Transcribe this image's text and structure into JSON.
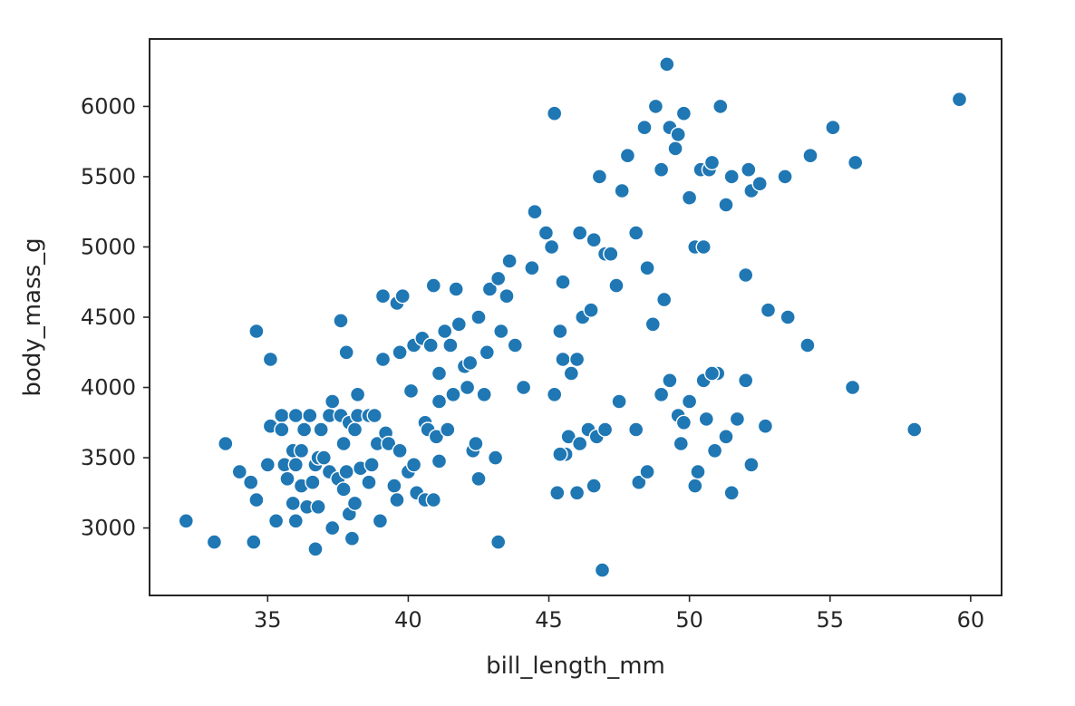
{
  "chart_data": {
    "type": "scatter",
    "title": "",
    "xlabel": "bill_length_mm",
    "ylabel": "body_mass_g",
    "xlim": [
      30.8,
      61.1
    ],
    "ylim": [
      2520,
      6480
    ],
    "xticks": [
      35,
      40,
      45,
      50,
      55,
      60
    ],
    "yticks": [
      3000,
      3500,
      4000,
      4500,
      5000,
      5500,
      6000
    ],
    "grid": false,
    "legend": "none",
    "marker_color": "#1f77b4",
    "marker_edge_color": "#ffffff",
    "points": [
      [
        32.1,
        3050
      ],
      [
        33.1,
        2900
      ],
      [
        33.5,
        3600
      ],
      [
        34.0,
        3400
      ],
      [
        34.4,
        3325
      ],
      [
        34.5,
        2900
      ],
      [
        34.6,
        3200
      ],
      [
        34.6,
        4400
      ],
      [
        35.0,
        3450
      ],
      [
        35.1,
        4200
      ],
      [
        35.1,
        3725
      ],
      [
        35.3,
        3050
      ],
      [
        35.5,
        3800
      ],
      [
        35.5,
        3700
      ],
      [
        35.6,
        3450
      ],
      [
        35.7,
        3350
      ],
      [
        35.9,
        3550
      ],
      [
        35.9,
        3175
      ],
      [
        36.0,
        3800
      ],
      [
        36.0,
        3450
      ],
      [
        36.0,
        3050
      ],
      [
        36.2,
        3300
      ],
      [
        36.2,
        3550
      ],
      [
        36.3,
        3700
      ],
      [
        36.4,
        3150
      ],
      [
        36.5,
        3800
      ],
      [
        36.6,
        3325
      ],
      [
        36.7,
        2850
      ],
      [
        36.7,
        3450
      ],
      [
        36.8,
        3150
      ],
      [
        36.8,
        3500
      ],
      [
        36.9,
        3700
      ],
      [
        37.0,
        3500
      ],
      [
        37.2,
        3800
      ],
      [
        37.2,
        3400
      ],
      [
        37.3,
        3900
      ],
      [
        37.3,
        3000
      ],
      [
        37.5,
        3350
      ],
      [
        37.6,
        3800
      ],
      [
        37.6,
        4475
      ],
      [
        37.7,
        3275
      ],
      [
        37.7,
        3600
      ],
      [
        37.8,
        3400
      ],
      [
        37.8,
        4250
      ],
      [
        37.9,
        3100
      ],
      [
        37.9,
        3750
      ],
      [
        38.0,
        2925
      ],
      [
        38.1,
        3175
      ],
      [
        38.1,
        3700
      ],
      [
        38.2,
        3800
      ],
      [
        38.2,
        3950
      ],
      [
        38.3,
        3425
      ],
      [
        38.6,
        3800
      ],
      [
        38.6,
        3325
      ],
      [
        38.7,
        3450
      ],
      [
        38.8,
        3800
      ],
      [
        38.9,
        3600
      ],
      [
        39.0,
        3050
      ],
      [
        39.1,
        4650
      ],
      [
        39.1,
        4200
      ],
      [
        39.2,
        3675
      ],
      [
        39.3,
        3600
      ],
      [
        39.5,
        3300
      ],
      [
        39.6,
        3200
      ],
      [
        39.6,
        4600
      ],
      [
        39.7,
        3550
      ],
      [
        39.7,
        4250
      ],
      [
        39.8,
        4650
      ],
      [
        40.0,
        3400
      ],
      [
        40.1,
        3975
      ],
      [
        40.2,
        3450
      ],
      [
        40.2,
        4300
      ],
      [
        40.3,
        3250
      ],
      [
        40.5,
        4350
      ],
      [
        40.6,
        3200
      ],
      [
        40.6,
        3750
      ],
      [
        40.7,
        3700
      ],
      [
        40.8,
        4300
      ],
      [
        40.9,
        3200
      ],
      [
        40.9,
        4725
      ],
      [
        41.0,
        3650
      ],
      [
        41.1,
        4100
      ],
      [
        41.1,
        3475
      ],
      [
        41.1,
        3900
      ],
      [
        41.3,
        4400
      ],
      [
        41.4,
        3700
      ],
      [
        41.5,
        4300
      ],
      [
        41.6,
        3950
      ],
      [
        41.7,
        4700
      ],
      [
        41.8,
        4450
      ],
      [
        42.0,
        4150
      ],
      [
        42.1,
        4000
      ],
      [
        42.2,
        4175
      ],
      [
        42.3,
        3550
      ],
      [
        42.4,
        3600
      ],
      [
        42.5,
        4500
      ],
      [
        42.5,
        3350
      ],
      [
        42.7,
        3950
      ],
      [
        42.8,
        4250
      ],
      [
        42.9,
        4700
      ],
      [
        43.1,
        3500
      ],
      [
        43.2,
        2900
      ],
      [
        43.2,
        4775
      ],
      [
        43.3,
        4400
      ],
      [
        43.5,
        4650
      ],
      [
        43.6,
        4900
      ],
      [
        43.8,
        4300
      ],
      [
        44.1,
        4000
      ],
      [
        44.4,
        4850
      ],
      [
        44.5,
        5250
      ],
      [
        44.9,
        5100
      ],
      [
        45.1,
        5000
      ],
      [
        45.2,
        5950
      ],
      [
        45.3,
        3250
      ],
      [
        45.4,
        4400
      ],
      [
        45.5,
        4200
      ],
      [
        45.5,
        4750
      ],
      [
        45.6,
        3525
      ],
      [
        45.8,
        4100
      ],
      [
        46.0,
        4200
      ],
      [
        46.1,
        5100
      ],
      [
        46.2,
        4500
      ],
      [
        46.4,
        3700
      ],
      [
        46.5,
        4550
      ],
      [
        46.6,
        5050
      ],
      [
        46.8,
        5500
      ],
      [
        46.9,
        2700
      ],
      [
        47.0,
        4950
      ],
      [
        47.2,
        4950
      ],
      [
        47.4,
        4725
      ],
      [
        47.6,
        5400
      ],
      [
        47.8,
        5650
      ],
      [
        48.1,
        5100
      ],
      [
        48.2,
        3325
      ],
      [
        48.4,
        5850
      ],
      [
        48.5,
        4850
      ],
      [
        48.7,
        4450
      ],
      [
        48.8,
        6000
      ],
      [
        49.0,
        5550
      ],
      [
        49.1,
        4625
      ],
      [
        49.2,
        6300
      ],
      [
        49.3,
        5850
      ],
      [
        49.5,
        5700
      ],
      [
        49.6,
        5800
      ],
      [
        49.8,
        5950
      ],
      [
        50.0,
        5350
      ],
      [
        50.2,
        5000
      ],
      [
        50.4,
        5550
      ],
      [
        50.5,
        5000
      ],
      [
        50.7,
        5550
      ],
      [
        50.8,
        5600
      ],
      [
        51.1,
        6000
      ],
      [
        51.3,
        5300
      ],
      [
        51.5,
        5500
      ],
      [
        52.0,
        4800
      ],
      [
        52.1,
        5550
      ],
      [
        52.2,
        5400
      ],
      [
        52.5,
        5450
      ],
      [
        52.8,
        4550
      ],
      [
        53.4,
        5500
      ],
      [
        53.5,
        4500
      ],
      [
        54.2,
        4300
      ],
      [
        54.3,
        5650
      ],
      [
        55.1,
        5850
      ],
      [
        55.8,
        4000
      ],
      [
        55.9,
        5600
      ],
      [
        58.0,
        3700
      ],
      [
        59.6,
        6050
      ],
      [
        45.4,
        3525
      ],
      [
        45.7,
        3650
      ],
      [
        46.1,
        3600
      ],
      [
        46.7,
        3650
      ],
      [
        47.0,
        3700
      ],
      [
        47.5,
        3900
      ],
      [
        48.1,
        3700
      ],
      [
        48.5,
        3400
      ],
      [
        49.0,
        3950
      ],
      [
        49.3,
        4050
      ],
      [
        49.6,
        3800
      ],
      [
        49.8,
        3750
      ],
      [
        50.0,
        3900
      ],
      [
        50.2,
        3300
      ],
      [
        50.3,
        3400
      ],
      [
        50.5,
        4050
      ],
      [
        50.6,
        3775
      ],
      [
        50.9,
        3550
      ],
      [
        51.0,
        4100
      ],
      [
        51.3,
        3650
      ],
      [
        51.5,
        3250
      ],
      [
        51.7,
        3775
      ],
      [
        52.0,
        4050
      ],
      [
        52.2,
        3450
      ],
      [
        52.7,
        3725
      ],
      [
        45.2,
        3950
      ],
      [
        46.0,
        3250
      ],
      [
        46.6,
        3300
      ],
      [
        49.7,
        3600
      ],
      [
        50.8,
        4100
      ]
    ]
  }
}
